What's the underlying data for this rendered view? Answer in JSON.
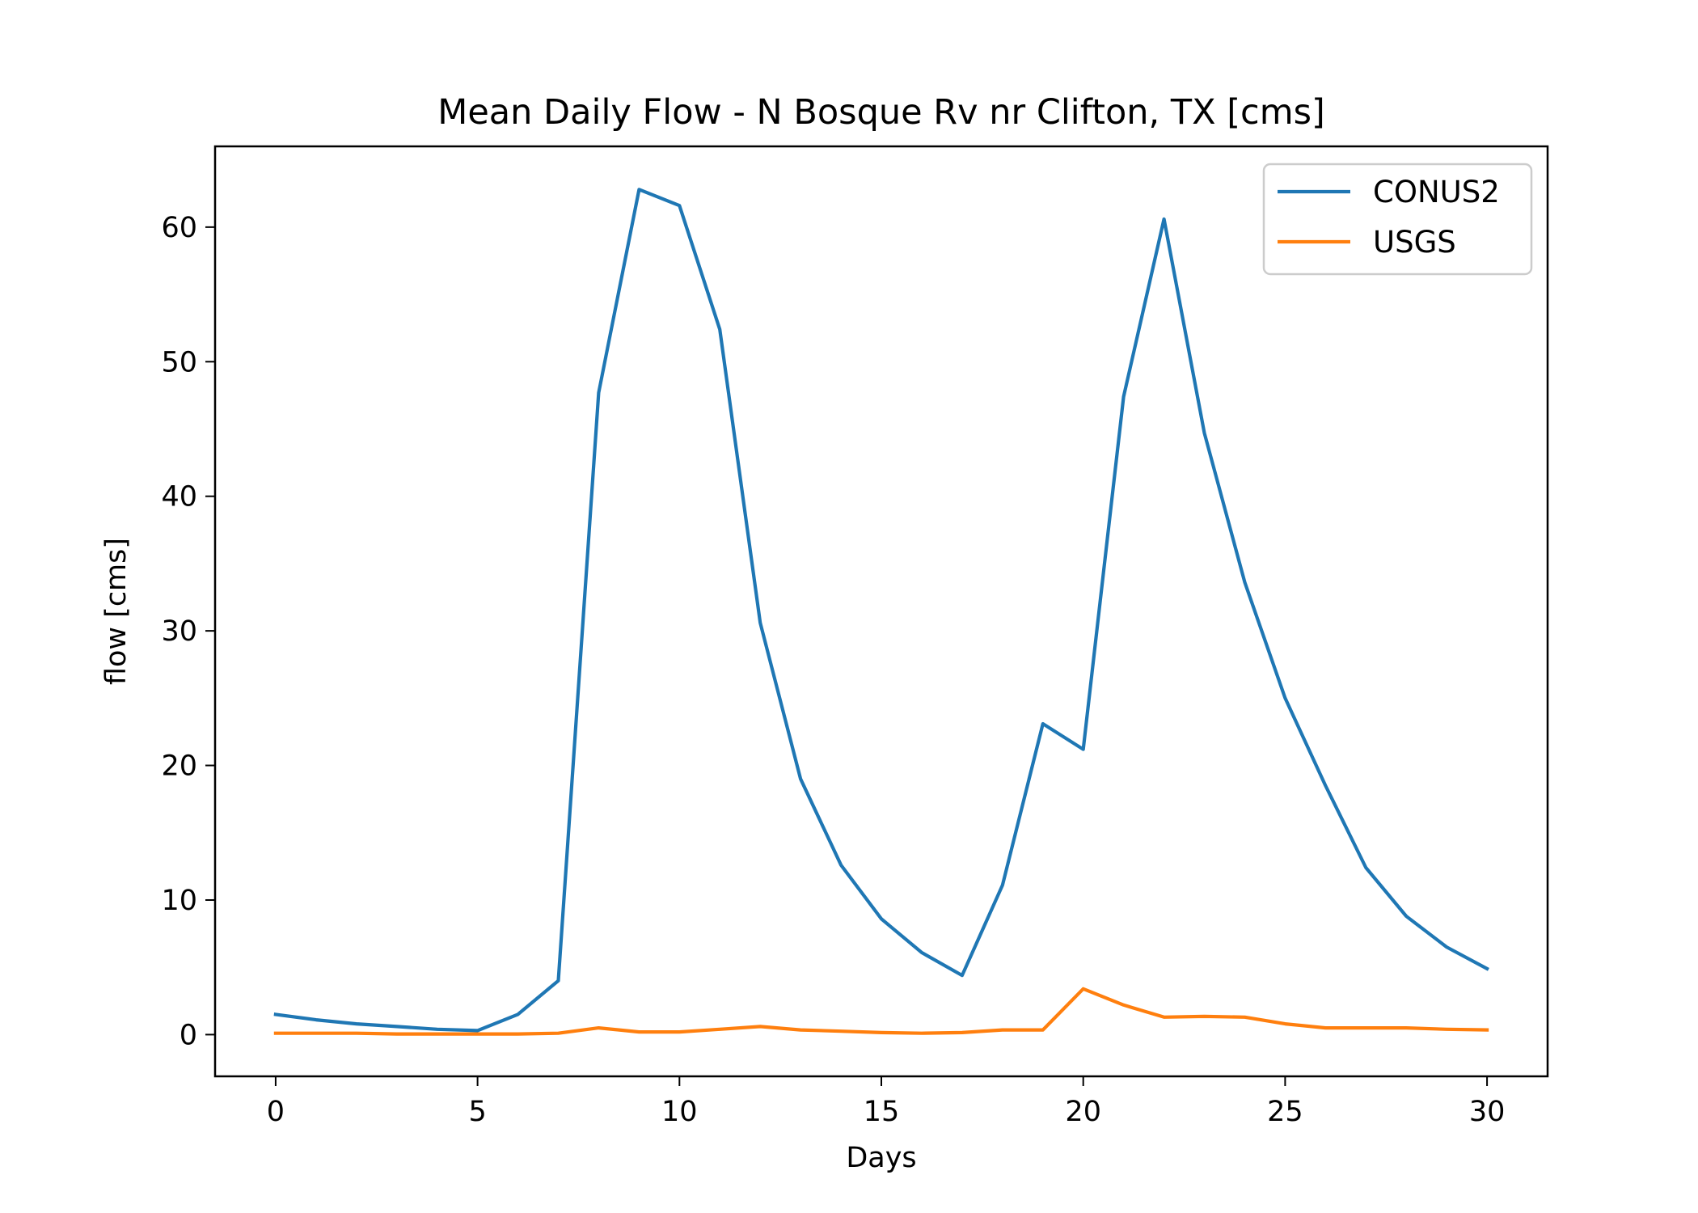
{
  "chart_data": {
    "type": "line",
    "title": "Mean Daily Flow - N Bosque Rv nr Clifton, TX [cms]",
    "xlabel": "Days",
    "ylabel": "flow [cms]",
    "xlim": [
      -1.5,
      31.5
    ],
    "ylim": [
      -3.1,
      66.0
    ],
    "xticks": [
      0,
      5,
      10,
      15,
      20,
      25,
      30
    ],
    "yticks": [
      0,
      10,
      20,
      30,
      40,
      50,
      60
    ],
    "grid": false,
    "legend_position": "top-right",
    "x": [
      0,
      1,
      2,
      3,
      4,
      5,
      6,
      7,
      8,
      9,
      10,
      11,
      12,
      13,
      14,
      15,
      16,
      17,
      18,
      19,
      20,
      21,
      22,
      23,
      24,
      25,
      26,
      27,
      28,
      29,
      30
    ],
    "series": [
      {
        "name": "CONUS2",
        "color": "#1f77b4",
        "values": [
          1.5,
          1.1,
          0.8,
          0.6,
          0.4,
          0.3,
          1.5,
          4.0,
          47.7,
          62.8,
          61.6,
          52.4,
          30.6,
          19.0,
          12.6,
          8.6,
          6.1,
          4.4,
          11.1,
          23.1,
          21.2,
          47.4,
          60.6,
          44.7,
          33.6,
          25.0,
          18.5,
          12.4,
          8.8,
          6.5,
          4.9
        ]
      },
      {
        "name": "USGS",
        "color": "#ff7f0e",
        "values": [
          0.1,
          0.1,
          0.1,
          0.05,
          0.05,
          0.05,
          0.05,
          0.1,
          0.5,
          0.2,
          0.2,
          0.4,
          0.6,
          0.35,
          0.25,
          0.15,
          0.1,
          0.15,
          0.35,
          0.35,
          3.4,
          2.2,
          1.3,
          1.35,
          1.3,
          0.8,
          0.5,
          0.5,
          0.5,
          0.4,
          0.35
        ]
      }
    ]
  }
}
